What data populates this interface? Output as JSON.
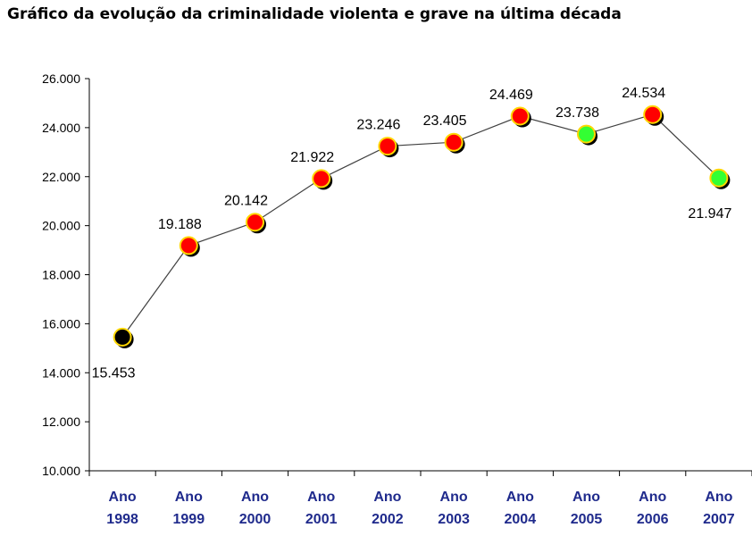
{
  "chart_data": {
    "type": "line",
    "title": "Gráfico da evolução da criminalidade violenta e grave na última década",
    "xlabel": "",
    "ylabel": "",
    "ylim": [
      10000,
      26000
    ],
    "y_ticks": [
      "10.000",
      "12.000",
      "14.000",
      "16.000",
      "18.000",
      "20.000",
      "22.000",
      "24.000",
      "26.000"
    ],
    "categories": [
      {
        "line1": "Ano",
        "line2": "1998"
      },
      {
        "line1": "Ano",
        "line2": "1999"
      },
      {
        "line1": "Ano",
        "line2": "2000"
      },
      {
        "line1": "Ano",
        "line2": "2001"
      },
      {
        "line1": "Ano",
        "line2": "2002"
      },
      {
        "line1": "Ano",
        "line2": "2003"
      },
      {
        "line1": "Ano",
        "line2": "2004"
      },
      {
        "line1": "Ano",
        "line2": "2005"
      },
      {
        "line1": "Ano",
        "line2": "2006"
      },
      {
        "line1": "Ano",
        "line2": "2007"
      }
    ],
    "values": [
      15453,
      19188,
      20142,
      21922,
      23246,
      23405,
      24469,
      23738,
      24534,
      21947
    ],
    "data_labels": [
      "15.453",
      "19.188",
      "20.142",
      "21.922",
      "23.246",
      "23.405",
      "24.469",
      "23.738",
      "24.534",
      "21.947"
    ],
    "label_position": [
      "below",
      "above",
      "above",
      "above",
      "above",
      "above",
      "above",
      "above",
      "above",
      "below"
    ],
    "marker_colors": [
      "#000000",
      "#ff0000",
      "#ff0000",
      "#ff0000",
      "#ff0000",
      "#ff0000",
      "#ff0000",
      "#33ff33",
      "#ff0000",
      "#33ff33"
    ],
    "marker_outline": "#ffd700",
    "line_color": "#404040",
    "axis_label_color": "#1f2a8c",
    "grid": false,
    "legend": "none"
  }
}
